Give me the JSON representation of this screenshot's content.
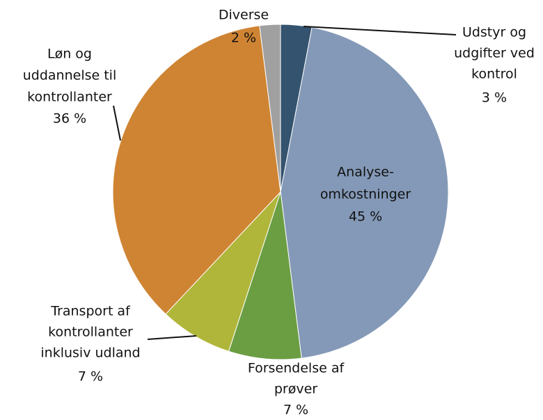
{
  "chart_data": {
    "type": "pie",
    "categories": [
      [
        "Udstyr og",
        "udgifter ved",
        "kontrol"
      ],
      [
        "Analyse-",
        "omkostninger"
      ],
      [
        "Forsendelse af",
        "prøver"
      ],
      [
        "Transport af",
        "kontrollanter",
        "inklusiv udland"
      ],
      [
        "Løn og",
        "uddannelse til",
        "kontrollanter"
      ],
      [
        "Diverse"
      ]
    ],
    "values": [
      3,
      45,
      7,
      7,
      36,
      2
    ],
    "value_labels": [
      "3 %",
      "45 %",
      "7 %",
      "7 %",
      "36 %",
      "2 %"
    ],
    "colors": [
      "#34536f",
      "#8499b7",
      "#6b9e43",
      "#b0b63a",
      "#cf8433",
      "#a0a0a0"
    ]
  }
}
